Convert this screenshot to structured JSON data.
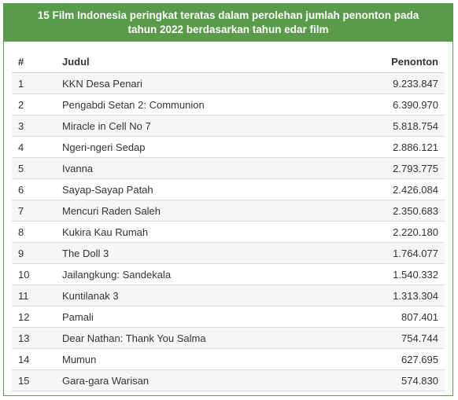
{
  "header": {
    "title_line1": "15 Film Indonesia peringkat teratas dalam perolehan jumlah penonton pada",
    "title_line2": "tahun 2022 berdasarkan tahun edar film"
  },
  "table": {
    "columns": [
      "#",
      "Judul",
      "Penonton"
    ],
    "rows": [
      {
        "rank": "1",
        "title": "KKN Desa Penari",
        "viewers": "9.233.847"
      },
      {
        "rank": "2",
        "title": "Pengabdi Setan 2: Communion",
        "viewers": "6.390.970"
      },
      {
        "rank": "3",
        "title": "Miracle in Cell No 7",
        "viewers": "5.818.754"
      },
      {
        "rank": "4",
        "title": "Ngeri-ngeri Sedap",
        "viewers": "2.886.121"
      },
      {
        "rank": "5",
        "title": "Ivanna",
        "viewers": "2.793.775"
      },
      {
        "rank": "6",
        "title": "Sayap-Sayap Patah",
        "viewers": "2.426.084"
      },
      {
        "rank": "7",
        "title": "Mencuri Raden Saleh",
        "viewers": "2.350.683"
      },
      {
        "rank": "8",
        "title": "Kukira Kau Rumah",
        "viewers": "2.220.180"
      },
      {
        "rank": "9",
        "title": "The Doll 3",
        "viewers": "1.764.077"
      },
      {
        "rank": "10",
        "title": "Jailangkung: Sandekala",
        "viewers": "1.540.332"
      },
      {
        "rank": "11",
        "title": "Kuntilanak 3",
        "viewers": "1.313.304"
      },
      {
        "rank": "12",
        "title": "Pamali",
        "viewers": "807.401"
      },
      {
        "rank": "13",
        "title": "Dear Nathan: Thank You Salma",
        "viewers": "754.744"
      },
      {
        "rank": "14",
        "title": "Mumun",
        "viewers": "627.695"
      },
      {
        "rank": "15",
        "title": "Gara-gara Warisan",
        "viewers": "574.830"
      }
    ]
  },
  "colors": {
    "header_bg": "#5a9a4b",
    "border": "#5f9a4f",
    "row_stripe": "#f6f6f6"
  }
}
